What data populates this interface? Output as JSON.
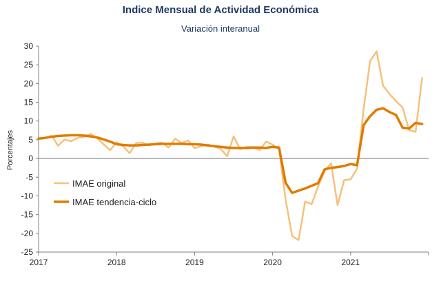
{
  "chart_data": {
    "type": "line",
    "title": "Indice Mensual de  Actividad Económica",
    "subtitle": "Variación interanual",
    "ylabel": "Porcentajes",
    "xlabel": "",
    "ylim": [
      -25,
      30
    ],
    "yticks": [
      -25,
      -20,
      -15,
      -10,
      -5,
      0,
      5,
      10,
      15,
      20,
      25,
      30
    ],
    "xlim": [
      2017,
      2022
    ],
    "xticks": [
      "2017",
      "2018",
      "2019",
      "2020",
      "2021"
    ],
    "grid": false,
    "legend_position": "lower-left",
    "colors": {
      "original": "#f7c07a",
      "trend": "#e07b00",
      "axis": "#7f7f7f"
    },
    "series": [
      {
        "name": "IMAE original",
        "start": "2017-01",
        "values": [
          5.3,
          5.4,
          6.1,
          3.4,
          5.1,
          4.6,
          5.5,
          5.8,
          6.6,
          5.4,
          3.8,
          2.2,
          4.3,
          3.3,
          1.4,
          4.1,
          4.2,
          3.5,
          4.0,
          4.2,
          2.9,
          5.3,
          4.1,
          4.8,
          2.8,
          3.2,
          3.7,
          3.2,
          2.6,
          0.6,
          5.9,
          2.5,
          3.1,
          3.0,
          2.2,
          4.5,
          3.7,
          2.5,
          -11.0,
          -20.7,
          -21.8,
          -11.5,
          -12.2,
          -7.5,
          -3.3,
          -1.3,
          -12.5,
          -5.8,
          -5.6,
          -2.7,
          13.2,
          26.0,
          28.6,
          19.4,
          17.2,
          15.3,
          13.6,
          7.6,
          7.1,
          21.5
        ]
      },
      {
        "name": "IMAE tendencia-ciclo",
        "start": "2017-01",
        "values": [
          5.3,
          5.5,
          5.8,
          6.0,
          6.1,
          6.2,
          6.2,
          6.1,
          5.9,
          5.6,
          5.1,
          4.5,
          3.8,
          3.6,
          3.5,
          3.5,
          3.6,
          3.7,
          3.8,
          3.9,
          3.9,
          3.9,
          3.9,
          3.8,
          3.8,
          3.7,
          3.5,
          3.3,
          3.1,
          2.9,
          2.8,
          2.8,
          2.8,
          2.9,
          2.9,
          2.8,
          3.1,
          2.9,
          -6.5,
          -9.2,
          -8.6,
          -8.0,
          -7.3,
          -6.6,
          -2.9,
          -2.5,
          -2.3,
          -2.0,
          -1.5,
          -1.8,
          8.9,
          11.3,
          13.0,
          13.4,
          12.4,
          11.6,
          8.2,
          8.0,
          9.5,
          9.2
        ]
      }
    ]
  }
}
